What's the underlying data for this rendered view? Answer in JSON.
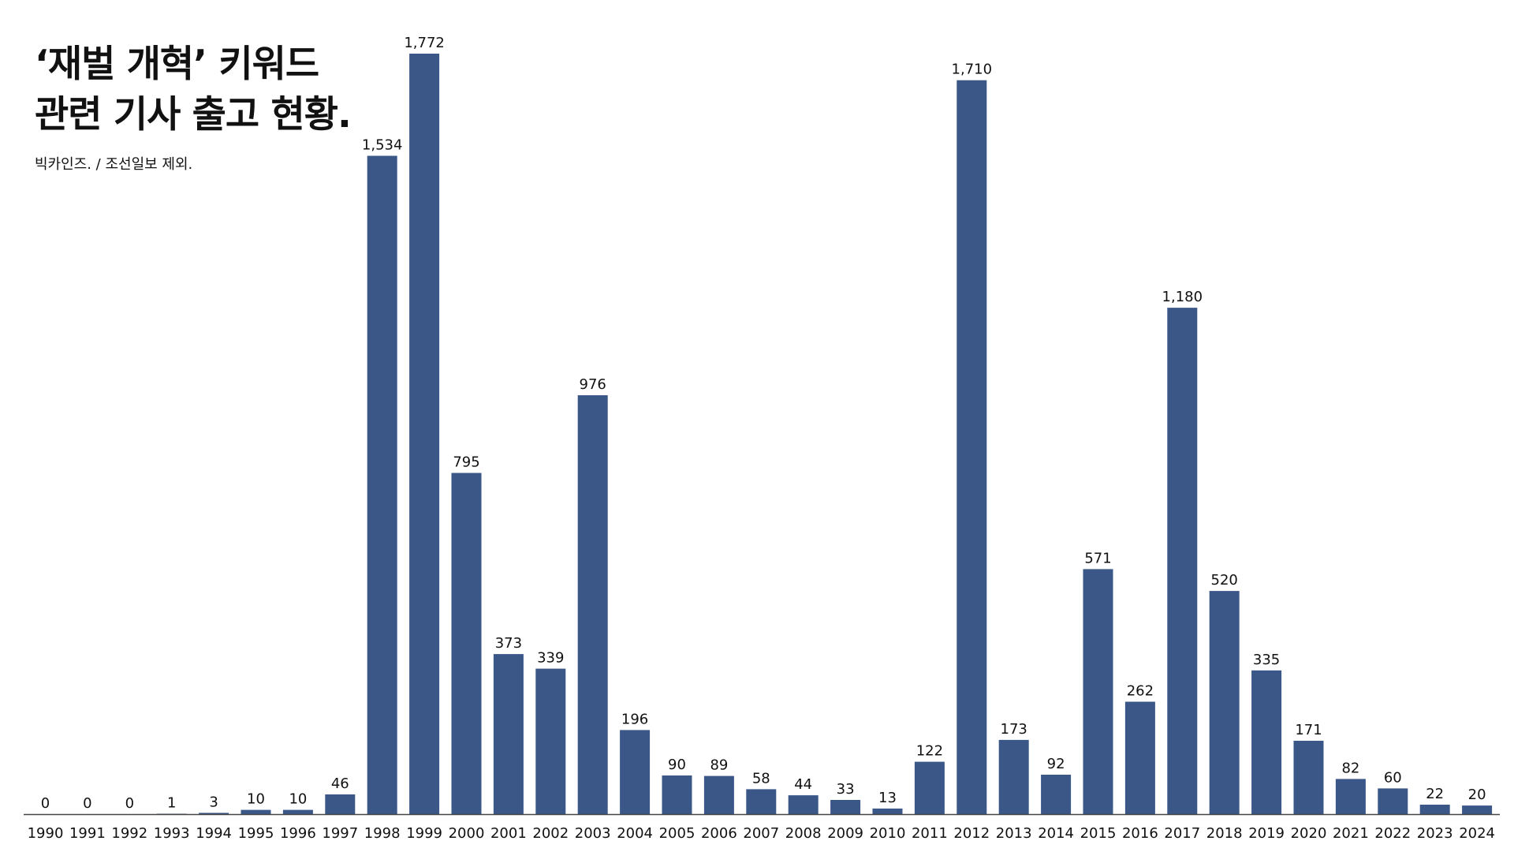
{
  "header": {
    "title_line1": "‘재벌 개혁’ 키워드",
    "title_line2": "관련 기사 출고 현황.",
    "subtitle": "빅카인즈. / 조선일보 제외."
  },
  "colors": {
    "bar": "#3a5788",
    "axis": "#444444"
  },
  "chart_data": {
    "type": "bar",
    "title": "‘재벌 개혁’ 키워드 관련 기사 출고 현황.",
    "subtitle": "빅카인즈. / 조선일보 제외.",
    "categories": [
      "1990",
      "1991",
      "1992",
      "1993",
      "1994",
      "1995",
      "1996",
      "1997",
      "1998",
      "1999",
      "2000",
      "2001",
      "2002",
      "2003",
      "2004",
      "2005",
      "2006",
      "2007",
      "2008",
      "2009",
      "2010",
      "2011",
      "2012",
      "2013",
      "2014",
      "2015",
      "2016",
      "2017",
      "2018",
      "2019",
      "2020",
      "2021",
      "2022",
      "2023",
      "2024"
    ],
    "values": [
      0,
      0,
      0,
      1,
      3,
      10,
      10,
      46,
      1534,
      1772,
      795,
      373,
      339,
      976,
      196,
      90,
      89,
      58,
      44,
      33,
      13,
      122,
      1710,
      173,
      92,
      571,
      262,
      1180,
      520,
      335,
      171,
      82,
      60,
      22,
      20
    ],
    "value_labels": [
      "0",
      "0",
      "0",
      "1",
      "3",
      "10",
      "10",
      "46",
      "1,534",
      "1,772",
      "795",
      "373",
      "339",
      "976",
      "196",
      "90",
      "89",
      "58",
      "44",
      "33",
      "13",
      "122",
      "1,710",
      "173",
      "92",
      "571",
      "262",
      "1,180",
      "520",
      "335",
      "171",
      "82",
      "60",
      "22",
      "20"
    ],
    "ylim": [
      0,
      1772
    ],
    "grid": false,
    "legend": "none"
  }
}
